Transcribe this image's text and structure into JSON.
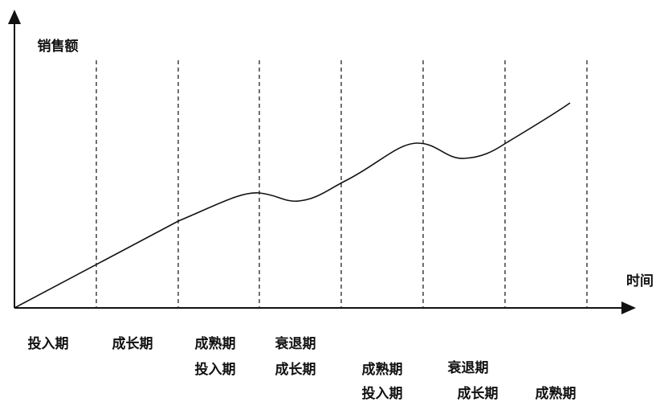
{
  "axes": {
    "y_label": "销售额",
    "x_label": "时间"
  },
  "cycles": [
    [
      "投入期",
      "成长期",
      "成熟期",
      "衰退期"
    ],
    [
      "投入期",
      "成长期",
      "成熟期",
      "衰退期"
    ],
    [
      "投入期",
      "成长期",
      "成熟期"
    ]
  ]
}
